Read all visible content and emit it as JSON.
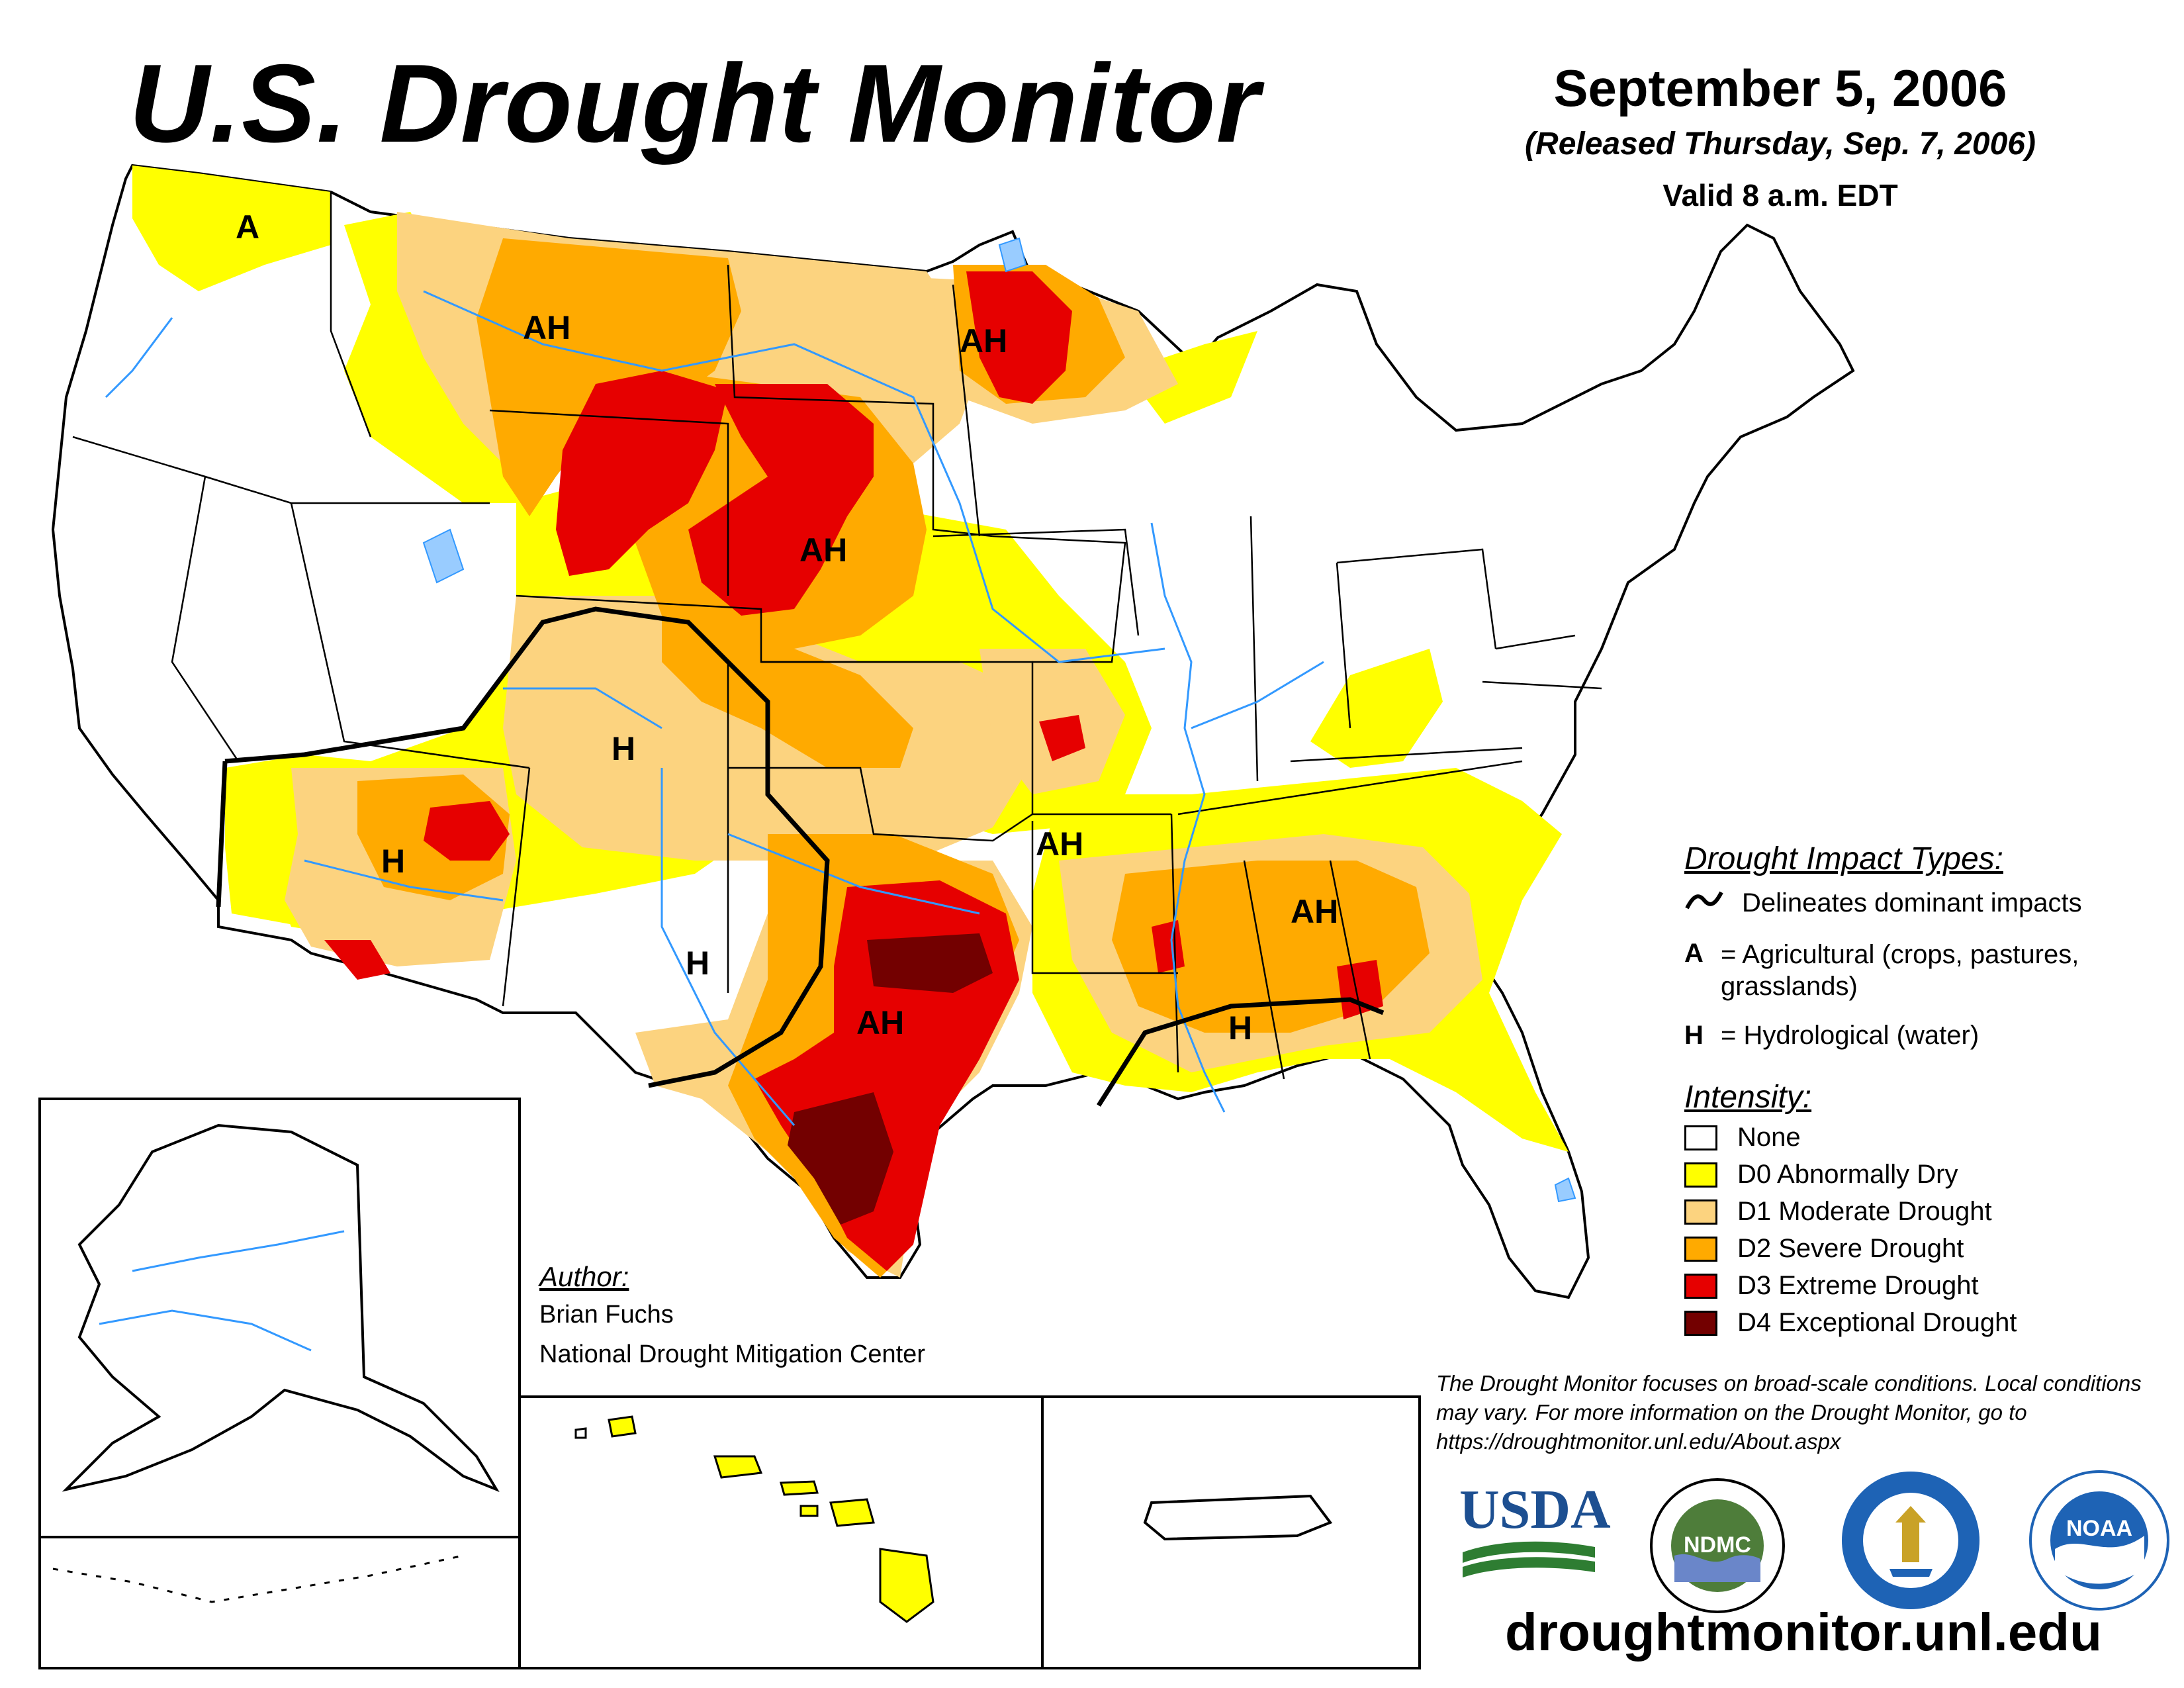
{
  "header": {
    "title": "U.S. Drought Monitor",
    "date": "September 5, 2006",
    "released": "(Released Thursday, Sep. 7, 2006)",
    "valid": "Valid 8 a.m. EDT"
  },
  "legend": {
    "impact_title": "Drought Impact Types:",
    "delineates": "Delineates dominant impacts",
    "a_key": "A",
    "a_desc": "= Agricultural (crops, pastures, grasslands)",
    "h_key": "H",
    "h_desc": "= Hydrological (water)",
    "intensity_title": "Intensity:",
    "items": [
      {
        "label": "None",
        "color": "#ffffff"
      },
      {
        "label": "D0 Abnormally Dry",
        "color": "#ffff00"
      },
      {
        "label": "D1 Moderate Drought",
        "color": "#fcd37f"
      },
      {
        "label": "D2 Severe Drought",
        "color": "#ffaa00"
      },
      {
        "label": "D3 Extreme Drought",
        "color": "#e60000"
      },
      {
        "label": "D4 Exceptional Drought",
        "color": "#730000"
      }
    ]
  },
  "map_labels": {
    "wa": "A",
    "mt": "AH",
    "mn": "AH",
    "sd": "AH",
    "co": "H",
    "az": "H",
    "nm": "H",
    "ks": "AH",
    "tx": "AH",
    "al": "AH",
    "la": "H"
  },
  "author": {
    "title": "Author:",
    "name": "Brian Fuchs",
    "org": "National Drought Mitigation Center"
  },
  "disclaimer": "The Drought Monitor focuses on broad-scale conditions. Local conditions may vary. For more information on the Drought Monitor, go to https://droughtmonitor.unl.edu/About.aspx",
  "logos": {
    "usda": "USDA",
    "ndmc": "NDMC",
    "noaa": "NOAA"
  },
  "url": "droughtmonitor.unl.edu",
  "colors": {
    "d0": "#ffff00",
    "d1": "#fcd37f",
    "d2": "#ffaa00",
    "d3": "#e60000",
    "d4": "#730000",
    "rivers": "#3399ff",
    "borders": "#000000"
  }
}
